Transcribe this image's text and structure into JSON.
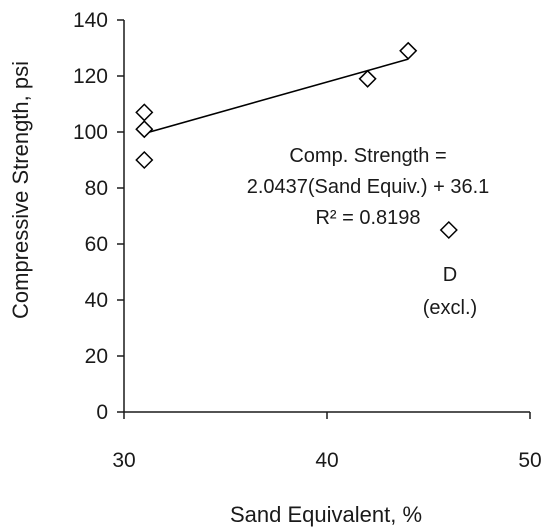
{
  "chart_data": {
    "type": "scatter",
    "title": "",
    "xlabel": "Sand Equivalent, %",
    "ylabel": "Compressive Strength, psi",
    "xlim": [
      30,
      50
    ],
    "ylim": [
      0,
      140
    ],
    "x_ticks": [
      30,
      40,
      50
    ],
    "y_ticks": [
      0,
      20,
      40,
      60,
      80,
      100,
      120,
      140
    ],
    "x_tick_labels": [
      "30",
      "40",
      "50"
    ],
    "y_tick_labels": [
      "0",
      "20",
      "40",
      "60",
      "80",
      "100",
      "120",
      "140"
    ],
    "grid": false,
    "legend": "none",
    "marker": "diamond-open",
    "points": [
      {
        "x": 31,
        "y": 107
      },
      {
        "x": 31,
        "y": 101
      },
      {
        "x": 31,
        "y": 90
      },
      {
        "x": 42,
        "y": 119
      },
      {
        "x": 44,
        "y": 129
      },
      {
        "x": 46,
        "y": 65
      }
    ],
    "trendline": {
      "slope": 2.0437,
      "intercept": 36.1,
      "x_range": [
        31,
        44
      ],
      "equation_lines": [
        "Comp. Strength =",
        "2.0437(Sand Equiv.) + 36.1",
        "R² = 0.8198"
      ]
    },
    "annotations": {
      "excluded_point_label": [
        "D",
        "(excl.)"
      ]
    },
    "colors": {
      "marker": "#000000",
      "line": "#000000",
      "axis": "#1a1a1a"
    }
  }
}
